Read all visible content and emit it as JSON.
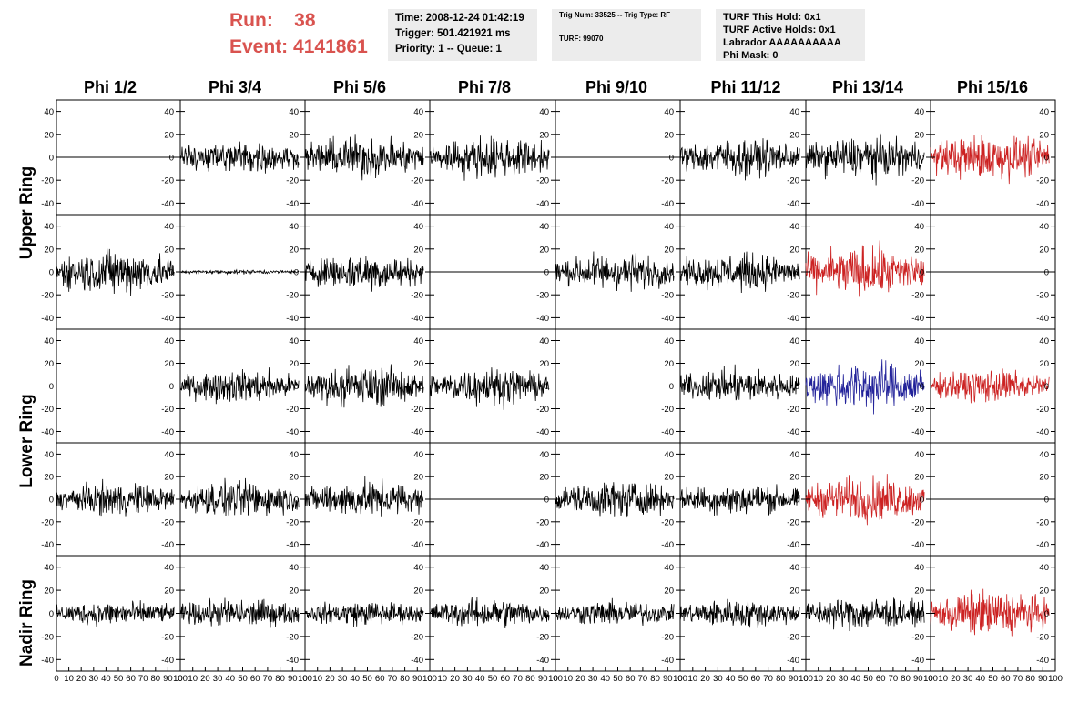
{
  "header": {
    "run_label": "Run:",
    "run_value": "38",
    "event_label": "Event:",
    "event_value": "4141861",
    "accent_color": "#d9534f"
  },
  "info": {
    "time": "Time: 2008-12-24 01:42:19",
    "trigger": "Trigger: 501.421921 ms",
    "priority": "Priority: 1 -- Queue: 1",
    "trig_num": "Trig Num: 33525 -- Trig Type: RF",
    "turf": "TURF: 99070",
    "turf_this_hold": "TURF This Hold: 0x1",
    "turf_active_holds": "TURF Active Holds: 0x1",
    "labrador": "Labrador AAAAAAAAAA",
    "phi_mask": "Phi Mask: 0"
  },
  "columns": [
    "Phi 1/2",
    "Phi 3/4",
    "Phi 5/6",
    "Phi 7/8",
    "Phi 9/10",
    "Phi 11/12",
    "Phi 13/14",
    "Phi 15/16"
  ],
  "rows": [
    "Upper Ring",
    "Lower Ring",
    "Nadir Ring"
  ],
  "chart_data": {
    "type": "line",
    "title": "",
    "x_range": [
      0,
      100
    ],
    "x_ticks": [
      0,
      10,
      20,
      30,
      40,
      50,
      60,
      70,
      80,
      90,
      100
    ],
    "y_range": [
      -50,
      50
    ],
    "y_ticks": [
      -40,
      -20,
      0,
      20,
      40
    ],
    "grid": false,
    "colors": {
      "normal": "#000000",
      "triggered": "#cc2222",
      "blue": "#22229a"
    },
    "panels": [
      [
        "flat",
        "noise",
        "noise",
        "noise",
        "flat",
        "noise",
        "noise",
        "red"
      ],
      [
        "noise",
        "small",
        "noise",
        "flat",
        "noise",
        "noise",
        "red",
        "flat"
      ],
      [
        "flat",
        "noise",
        "noise",
        "noise",
        "flat",
        "noise",
        "blue",
        "red"
      ],
      [
        "noise",
        "noise",
        "noise",
        "flat",
        "noise",
        "noise",
        "red",
        "flat"
      ],
      [
        "noise",
        "noise",
        "noise",
        "noise",
        "noise",
        "noise",
        "noise",
        "red"
      ]
    ],
    "amplitudes": [
      [
        0,
        16,
        20,
        20,
        0,
        18,
        20,
        22
      ],
      [
        22,
        2,
        18,
        0,
        18,
        18,
        24,
        0
      ],
      [
        0,
        16,
        20,
        18,
        0,
        16,
        24,
        16
      ],
      [
        16,
        18,
        18,
        0,
        18,
        16,
        22,
        0
      ],
      [
        12,
        14,
        12,
        14,
        12,
        14,
        16,
        22
      ]
    ]
  }
}
